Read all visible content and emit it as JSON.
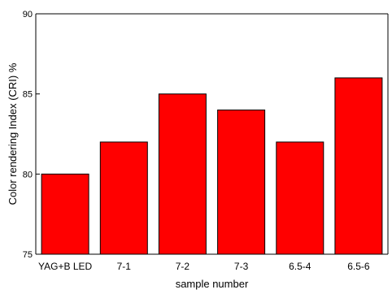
{
  "chart_data": {
    "type": "bar",
    "title": "",
    "xlabel": "sample number",
    "ylabel": "Color rendering Index (CRI) %",
    "categories": [
      "YAG+B LED",
      "7-1",
      "7-2",
      "7-3",
      "6.5-4",
      "6.5-6"
    ],
    "values": [
      80,
      82,
      85,
      84,
      82,
      86
    ],
    "ylim": [
      75,
      90
    ],
    "yticks": [
      "75",
      "80",
      "85",
      "90"
    ],
    "grid": false,
    "legend": "none",
    "bar_color": "#ff0000",
    "edge_color": "#000000"
  }
}
